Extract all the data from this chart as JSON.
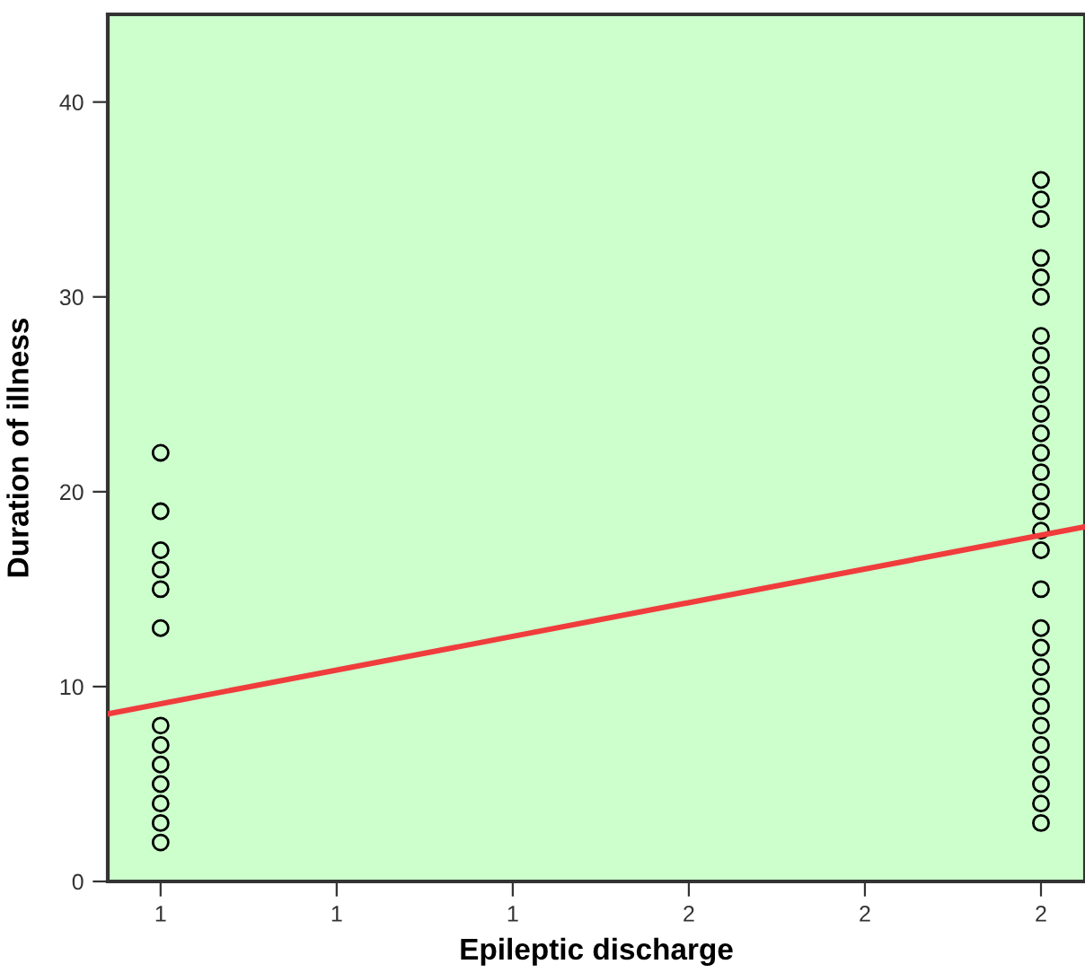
{
  "chart_data": {
    "type": "scatter",
    "xlabel": "Epileptic discharge",
    "ylabel": "Duration of illness",
    "xlim": [
      0.94,
      2.05
    ],
    "ylim": [
      0,
      44.5
    ],
    "xticks": [
      {
        "value": 1.0,
        "label": "1"
      },
      {
        "value": 1.2,
        "label": "1"
      },
      {
        "value": 1.4,
        "label": "1"
      },
      {
        "value": 1.6,
        "label": "2"
      },
      {
        "value": 1.8,
        "label": "2"
      },
      {
        "value": 2.0,
        "label": "2"
      }
    ],
    "yticks": [
      0,
      10,
      20,
      30,
      40
    ],
    "grid": false,
    "series": [
      {
        "marker": "circle",
        "color": "#000000",
        "x": [
          1,
          1,
          1,
          1,
          1,
          1,
          1,
          1,
          1,
          1,
          1,
          1,
          1
        ],
        "values": [
          22,
          19,
          17,
          16,
          15,
          13,
          8,
          7,
          6,
          5,
          4,
          3,
          2
        ]
      },
      {
        "marker": "circle",
        "color": "#000000",
        "x": [
          2,
          2,
          2,
          2,
          2,
          2,
          2,
          2,
          2,
          2,
          2,
          2,
          2,
          2,
          2,
          2,
          2,
          2,
          2,
          2,
          2,
          2,
          2,
          2,
          2,
          2,
          2,
          2,
          2,
          2
        ],
        "values": [
          36,
          35,
          34,
          32,
          31,
          30,
          28,
          27,
          26,
          25,
          24,
          23,
          22,
          21,
          20,
          19,
          18,
          17,
          15,
          13,
          12,
          11,
          10,
          9,
          8,
          7,
          6,
          5,
          4,
          3
        ]
      },
      {
        "type": "line",
        "color": "#f03c3c",
        "x": [
          0.94,
          2.05
        ],
        "values": [
          8.6,
          18.2
        ],
        "line_style": "solid"
      }
    ]
  }
}
